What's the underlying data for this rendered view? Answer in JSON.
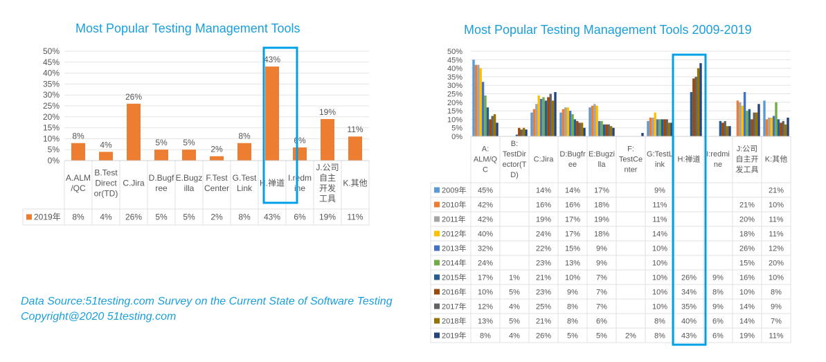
{
  "footer": {
    "source": "Data Source:51testing.com Survey on the Current State of Software Testing",
    "copyright": "Copyright@2020 51testing.com"
  },
  "chart_data": [
    {
      "type": "bar",
      "title": "Most Popular Testing Management Tools",
      "categories": [
        [
          "A.ALM",
          "/QC"
        ],
        [
          "B.Test",
          "Direct",
          "or(TD)"
        ],
        [
          "C.Jira"
        ],
        [
          "D.Bugf",
          "ree"
        ],
        [
          "E.Bugz",
          "illa"
        ],
        [
          "F.Test",
          "Center"
        ],
        [
          "G.Test",
          "Link"
        ],
        [
          "H.禅道"
        ],
        [
          "I.redm",
          "ine"
        ],
        [
          "J.公司",
          "自主",
          "开发",
          "工具"
        ],
        [
          "K.其他"
        ]
      ],
      "series": [
        {
          "name": "2019年",
          "color": "#ED7D31",
          "values": [
            8,
            4,
            26,
            5,
            5,
            2,
            8,
            43,
            6,
            19,
            11
          ]
        }
      ],
      "value_labels": [
        "8%",
        "4%",
        "26%",
        "5%",
        "5%",
        "2%",
        "8%",
        "43%",
        "6%",
        "19%",
        "11%"
      ],
      "ylim": [
        0,
        50
      ],
      "yticks": [
        "0%",
        "5%",
        "10%",
        "15%",
        "20%",
        "25%",
        "30%",
        "35%",
        "40%",
        "45%",
        "50%"
      ],
      "grid": true,
      "data_table": true,
      "highlight_category": "H.禅道",
      "highlight_color": "#00A0E9"
    },
    {
      "type": "bar",
      "title": "Most Popular Testing Management Tools 2009-2019",
      "categories": [
        [
          "A:",
          "ALM/Q",
          "C"
        ],
        [
          "B:",
          "TestDir",
          "ector(T",
          "D)"
        ],
        [
          "C:Jira"
        ],
        [
          "D:Bugfr",
          "ee"
        ],
        [
          "E:Bugzi",
          "lla"
        ],
        [
          "F:",
          "TestCe",
          "nter"
        ],
        [
          "G:TestL",
          "ink"
        ],
        [
          "H:禅道"
        ],
        [
          "I:redmi",
          "ne"
        ],
        [
          "J:公司",
          "自主开",
          "发工具"
        ],
        [
          "K:其他"
        ]
      ],
      "series": [
        {
          "name": "2009年",
          "color": "#5B9BD5",
          "values": [
            45,
            null,
            14,
            14,
            17,
            null,
            9,
            null,
            null,
            null,
            21
          ]
        },
        {
          "name": "2010年",
          "color": "#ED7D31",
          "values": [
            42,
            null,
            16,
            16,
            18,
            null,
            11,
            null,
            null,
            21,
            10
          ]
        },
        {
          "name": "2011年",
          "color": "#A5A5A5",
          "values": [
            42,
            null,
            19,
            17,
            19,
            null,
            11,
            null,
            null,
            20,
            11
          ]
        },
        {
          "name": "2012年",
          "color": "#FFC000",
          "values": [
            40,
            null,
            24,
            17,
            18,
            null,
            14,
            null,
            null,
            18,
            11
          ]
        },
        {
          "name": "2013年",
          "color": "#4472C4",
          "values": [
            32,
            null,
            22,
            15,
            9,
            null,
            10,
            null,
            null,
            26,
            12
          ]
        },
        {
          "name": "2014年",
          "color": "#70AD47",
          "values": [
            24,
            null,
            23,
            13,
            9,
            null,
            10,
            null,
            null,
            15,
            20
          ]
        },
        {
          "name": "2015年",
          "color": "#255E91",
          "values": [
            17,
            1,
            21,
            10,
            7,
            null,
            10,
            26,
            9,
            16,
            10
          ]
        },
        {
          "name": "2016年",
          "color": "#9E480E",
          "values": [
            10,
            5,
            23,
            9,
            7,
            null,
            10,
            34,
            8,
            10,
            8
          ]
        },
        {
          "name": "2017年",
          "color": "#636363",
          "values": [
            12,
            4,
            25,
            8,
            7,
            null,
            10,
            35,
            9,
            14,
            9
          ]
        },
        {
          "name": "2018年",
          "color": "#997300",
          "values": [
            13,
            5,
            21,
            8,
            6,
            null,
            8,
            40,
            6,
            14,
            7
          ]
        },
        {
          "name": "2019年",
          "color": "#264478",
          "values": [
            8,
            4,
            26,
            5,
            5,
            2,
            8,
            43,
            6,
            19,
            11
          ]
        }
      ],
      "ylim": [
        0,
        50
      ],
      "yticks": [
        "0%",
        "5%",
        "10%",
        "15%",
        "20%",
        "25%",
        "30%",
        "35%",
        "40%",
        "45%",
        "50%"
      ],
      "grid": true,
      "data_table": true,
      "highlight_category": "H:禅道",
      "highlight_color": "#00A0E9"
    }
  ]
}
